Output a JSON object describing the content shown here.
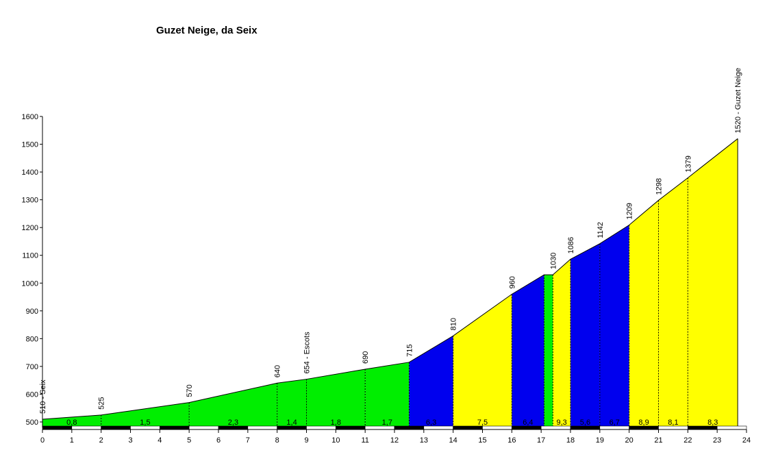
{
  "chart_data": {
    "type": "area",
    "title": "Guzet Neige, da Seix",
    "xlim": [
      0,
      24
    ],
    "ylim": [
      480,
      1600
    ],
    "x_ticks": [
      0,
      1,
      2,
      3,
      4,
      5,
      6,
      7,
      8,
      9,
      10,
      11,
      12,
      13,
      14,
      15,
      16,
      17,
      18,
      19,
      20,
      21,
      22,
      23,
      24
    ],
    "y_ticks": [
      500,
      600,
      700,
      800,
      900,
      1000,
      1100,
      1200,
      1300,
      1400,
      1500,
      1600
    ],
    "profile": [
      {
        "x": 0,
        "y": 510
      },
      {
        "x": 2,
        "y": 525
      },
      {
        "x": 5,
        "y": 570
      },
      {
        "x": 8,
        "y": 640
      },
      {
        "x": 9,
        "y": 654
      },
      {
        "x": 11,
        "y": 690
      },
      {
        "x": 12.5,
        "y": 715
      },
      {
        "x": 14,
        "y": 810
      },
      {
        "x": 16,
        "y": 960
      },
      {
        "x": 17.1,
        "y": 1030
      },
      {
        "x": 17.4,
        "y": 1030
      },
      {
        "x": 18,
        "y": 1086
      },
      {
        "x": 19,
        "y": 1142
      },
      {
        "x": 20,
        "y": 1209
      },
      {
        "x": 21,
        "y": 1298
      },
      {
        "x": 22,
        "y": 1379
      },
      {
        "x": 23.7,
        "y": 1520
      }
    ],
    "point_labels": [
      {
        "x": 0,
        "y": 510,
        "text": "510 - Seix"
      },
      {
        "x": 2,
        "y": 525,
        "text": "525"
      },
      {
        "x": 5,
        "y": 570,
        "text": "570"
      },
      {
        "x": 8,
        "y": 640,
        "text": "640"
      },
      {
        "x": 9,
        "y": 654,
        "text": "654 - Escots"
      },
      {
        "x": 11,
        "y": 690,
        "text": "690"
      },
      {
        "x": 12.5,
        "y": 715,
        "text": "715"
      },
      {
        "x": 14,
        "y": 810,
        "text": "810"
      },
      {
        "x": 16,
        "y": 960,
        "text": "960"
      },
      {
        "x": 17.4,
        "y": 1030,
        "text": "1030"
      },
      {
        "x": 18,
        "y": 1086,
        "text": "1086"
      },
      {
        "x": 19,
        "y": 1142,
        "text": "1142"
      },
      {
        "x": 20,
        "y": 1209,
        "text": "1209"
      },
      {
        "x": 21,
        "y": 1298,
        "text": "1298"
      },
      {
        "x": 22,
        "y": 1379,
        "text": "1379"
      },
      {
        "x": 23.7,
        "y": 1520,
        "text": "1520 - Guzet Neige"
      }
    ],
    "segments": [
      {
        "x0": 0,
        "x1": 2,
        "gradient": "0,8",
        "color": "#00ee00"
      },
      {
        "x0": 2,
        "x1": 5,
        "gradient": "1,5",
        "color": "#00ee00"
      },
      {
        "x0": 5,
        "x1": 8,
        "gradient": "2,3",
        "color": "#00ee00"
      },
      {
        "x0": 8,
        "x1": 9,
        "gradient": "1,4",
        "color": "#00ee00"
      },
      {
        "x0": 9,
        "x1": 11,
        "gradient": "1,8",
        "color": "#00ee00"
      },
      {
        "x0": 11,
        "x1": 12.5,
        "gradient": "1,7",
        "color": "#00ee00"
      },
      {
        "x0": 12.5,
        "x1": 14,
        "gradient": "6,3",
        "color": "#0000ee"
      },
      {
        "x0": 14,
        "x1": 16,
        "gradient": "7,5",
        "color": "#ffff00"
      },
      {
        "x0": 16,
        "x1": 17.1,
        "gradient": "6,4",
        "color": "#0000ee"
      },
      {
        "x0": 17.1,
        "x1": 17.4,
        "gradient": "",
        "color": "#00ee00"
      },
      {
        "x0": 17.4,
        "x1": 18,
        "gradient": "9,3",
        "color": "#ffff00"
      },
      {
        "x0": 18,
        "x1": 19,
        "gradient": "5,6",
        "color": "#0000ee"
      },
      {
        "x0": 19,
        "x1": 20,
        "gradient": "6,7",
        "color": "#0000ee"
      },
      {
        "x0": 20,
        "x1": 21,
        "gradient": "8,9",
        "color": "#ffff00"
      },
      {
        "x0": 21,
        "x1": 22,
        "gradient": "8,1",
        "color": "#ffff00"
      },
      {
        "x0": 22,
        "x1": 23.7,
        "gradient": "8,3",
        "color": "#ffff00"
      }
    ],
    "grid": false,
    "colors": {
      "gentle": "#00ee00",
      "moderate": "#0000ee",
      "steep": "#ffff00",
      "axis": "#000000",
      "km_band_dark": "#000000",
      "km_band_light": "#ffffff"
    }
  }
}
